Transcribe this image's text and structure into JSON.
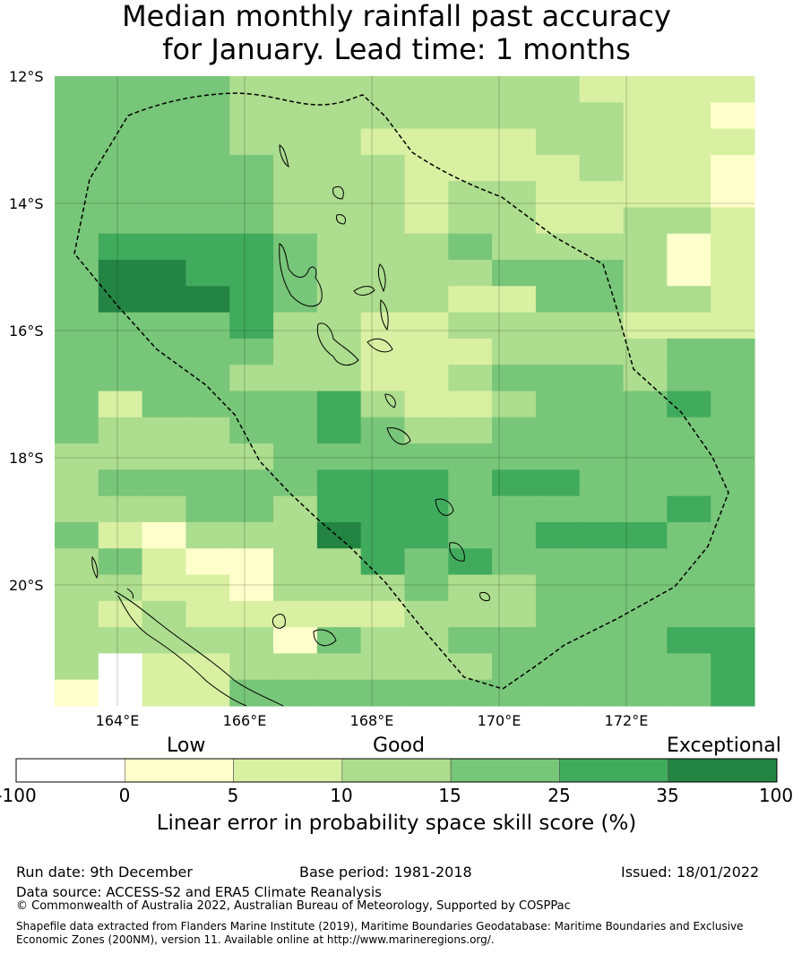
{
  "title_line1": "Median monthly rainfall past accuracy",
  "title_line2": "for January. Lead time: 1 months",
  "map": {
    "lat_ticks": [
      "12°S",
      "14°S",
      "16°S",
      "18°S",
      "20°S"
    ],
    "lon_ticks": [
      "164°E",
      "166°E",
      "168°E",
      "170°E",
      "172°E"
    ],
    "grid_rows": [
      "4444333333332222",
      "4444333333333221",
      "4444333222233222",
      "4444433322223221",
      "4444433323322221",
      "4444433323322332",
      "4555543334333312",
      "4665543333444312",
      "4666543332244332",
      "4444533223333222",
      "4444433222333344",
      "4444333223444344",
      "4244445322344454",
      "4333445433444444",
      "3333344444444444",
      "3444445554554444",
      "3334435554444454",
      "4213336554455544",
      "3421133545444444",
      "3322133343344444",
      "3232222233344444",
      "3333314334444455",
      "3022333333444445",
      "1022444444444445"
    ]
  },
  "colorbar": {
    "category_labels": [
      "Low",
      "Good",
      "Exceptional"
    ],
    "ticks": [
      "-100",
      "0",
      "5",
      "10",
      "15",
      "25",
      "35",
      "100"
    ],
    "colors": [
      "#ffffff",
      "#ffffcc",
      "#d9f0a3",
      "#addd8e",
      "#78c679",
      "#41ab5d",
      "#238443"
    ],
    "label": "Linear error in probability space skill score (%)"
  },
  "footer": {
    "run_date": "Run date: 9th December",
    "base_period": "Base period: 1981-2018",
    "issued": "Issued: 18/01/2022",
    "data_source": "Data source: ACCESS-S2 and ERA5 Climate Reanalysis",
    "copyright": "© Commonwealth of Australia 2022, Australian Bureau of Meteorology, Supported by COSPPac",
    "shapefile": "Shapefile data extracted from Flanders Marine Institute (2019), Maritime Boundaries Geodatabase: Maritime Boundaries and Exclusive Economic Zones (200NM), version 11. Available online at http://www.marineregions.org/."
  }
}
